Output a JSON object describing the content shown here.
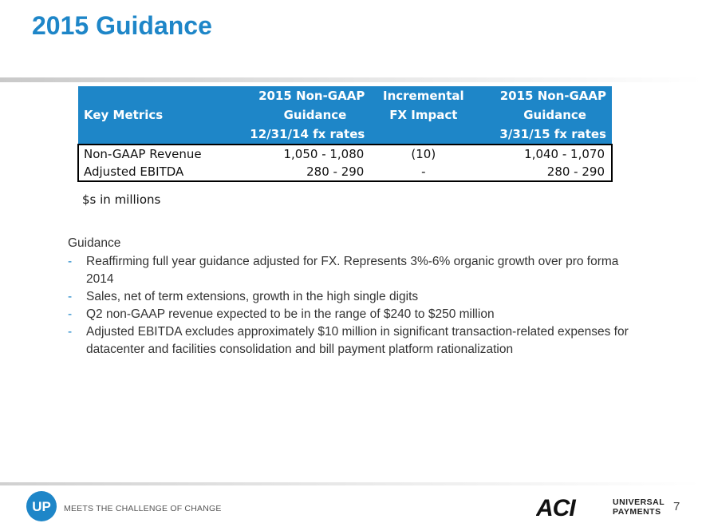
{
  "slide": {
    "title": "2015 Guidance",
    "page_number": "7",
    "accent_color": "#1e86c8"
  },
  "table": {
    "header_rows": [
      [
        "",
        "2015 Non-GAAP",
        "Incremental",
        "2015 Non-GAAP"
      ],
      [
        "Key Metrics",
        "Guidance",
        "FX Impact",
        "Guidance"
      ],
      [
        "",
        "12/31/14 fx rates",
        "",
        "3/31/15 fx rates"
      ]
    ],
    "rows": [
      [
        "Non-GAAP Revenue",
        "1,050 - 1,080",
        "(10)",
        "1,040 - 1,070"
      ],
      [
        "Adjusted EBITDA",
        "280 - 290",
        "-",
        "280 - 290"
      ]
    ],
    "footnote": "$s in millions"
  },
  "guidance": {
    "heading": "Guidance",
    "bullet_marker": "-",
    "bullets": [
      "Reaffirming full year guidance adjusted for FX.  Represents 3%-6% organic growth over pro forma 2014",
      "Sales, net of term extensions, growth in the high single digits",
      "Q2 non-GAAP revenue expected to be in the range of $240 to $250 million",
      "Adjusted EBITDA excludes approximately $10 million in significant transaction-related expenses for datacenter and facilities consolidation and bill payment platform rationalization"
    ]
  },
  "footer": {
    "up_logo_text": "UP",
    "tagline": "MEETS THE CHALLENGE OF CHANGE",
    "aci_logo_text": "ACI",
    "brand_line1": "UNIVERSAL",
    "brand_line2": "PAYMENTS"
  }
}
